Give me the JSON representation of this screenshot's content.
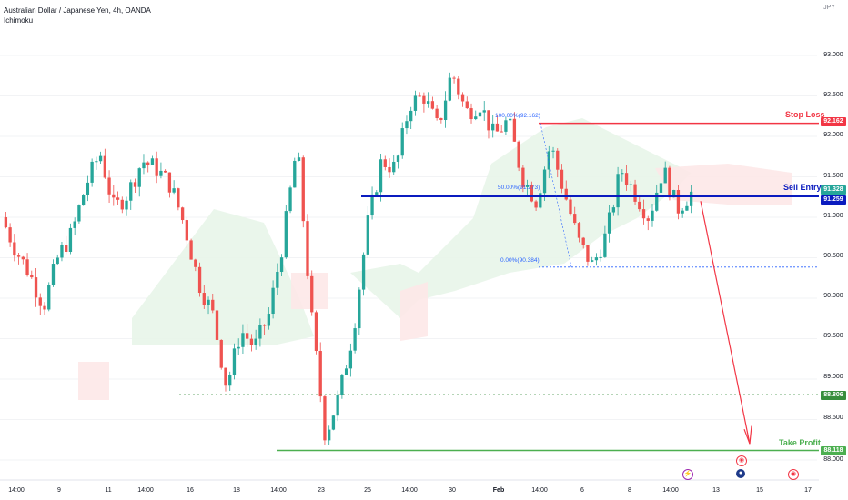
{
  "header": {
    "symbol_title": "Australian Dollar / Japanese Yen, 4h, OANDA",
    "indicator": "Ichimoku",
    "currency": "JPY"
  },
  "price_axis": {
    "ticks": [
      "93.000",
      "92.500",
      "92.000",
      "91.500",
      "91.000",
      "90.500",
      "90.000",
      "89.500",
      "89.000",
      "88.500",
      "88.000"
    ]
  },
  "time_axis": {
    "ticks": [
      "14:00",
      "9",
      "11",
      "14:00",
      "16",
      "18",
      "14:00",
      "23",
      "25",
      "14:00",
      "30",
      "Feb",
      "14:00",
      "6",
      "8",
      "14:00",
      "13",
      "15",
      "17"
    ]
  },
  "price_tags": {
    "stop_loss": "92.162",
    "current": "91.328",
    "sell_entry": "91.259",
    "support": "88.806",
    "take_profit": "88.118"
  },
  "annotations": {
    "stop_loss": "Stop Loss",
    "sell_entry": "Sell Entry",
    "take_profit": "Take Profit"
  },
  "fibonacci": {
    "level_100": "100.00%(92.162)",
    "level_50": "50.00%(91.273)",
    "level_0": "0.00%(90.384)"
  },
  "colors": {
    "up_candle": "#26a69a",
    "down_candle": "#ef5350",
    "stop_loss": "#f23645",
    "entry": "#0a1bbf",
    "take_profit": "#4caf50",
    "cloud_green": "#e8f5e9",
    "cloud_red": "#fde8e8",
    "fib": "#2962ff"
  },
  "events": [
    {
      "icon": "lightning-icon",
      "glyph": "⚡"
    },
    {
      "icon": "flag-au-icon",
      "glyph": "●"
    },
    {
      "icon": "alert-icon",
      "glyph": "◉"
    },
    {
      "icon": "alert-icon",
      "glyph": "◉"
    }
  ],
  "chart_data": {
    "type": "candlestick",
    "symbol": "Australian Dollar / Japanese Yen",
    "interval": "4h",
    "ylim": [
      87.9,
      93.2
    ],
    "series": [
      {
        "name": "price",
        "close_path": [
          91.0,
          90.6,
          90.3,
          89.9,
          90.5,
          90.8,
          91.4,
          91.8,
          91.1,
          91.3,
          91.7,
          91.6,
          91.4,
          90.9,
          90.2,
          89.8,
          88.9,
          89.6,
          89.4,
          89.8,
          90.7,
          91.9,
          89.8,
          88.3,
          88.8,
          89.6,
          90.9,
          91.7,
          91.6,
          92.4,
          92.5,
          92.1,
          92.8,
          92.3,
          92.4,
          92.0,
          92.2,
          91.5,
          91.2,
          91.9,
          91.3,
          90.7,
          90.4,
          90.8,
          91.6,
          91.3,
          91.0,
          91.6,
          91.1,
          91.3
        ]
      }
    ],
    "levels": {
      "stop_loss": 92.162,
      "sell_entry": 91.259,
      "support": 88.806,
      "take_profit": 88.118,
      "fib_0": 90.384
    }
  }
}
